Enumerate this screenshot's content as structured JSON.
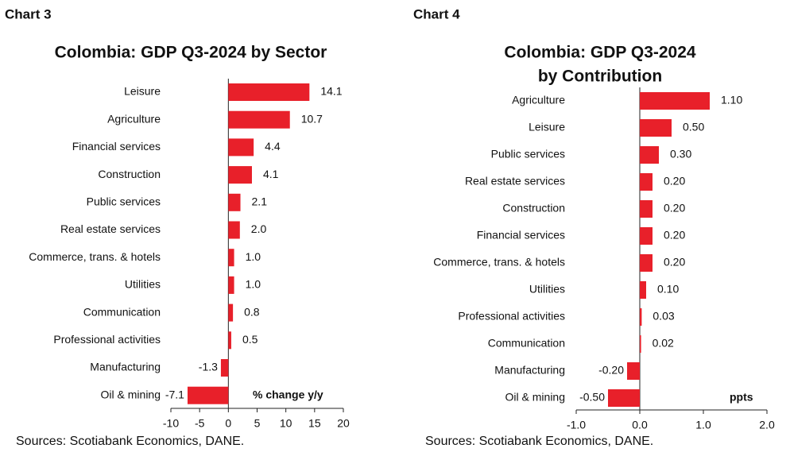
{
  "chart_data": [
    {
      "type": "hbar",
      "label": "Chart 3",
      "title": [
        "Colombia: GDP Q3-2024 by Sector"
      ],
      "categories": [
        "Leisure",
        "Agriculture",
        "Financial services",
        "Construction",
        "Public services",
        "Real estate services",
        "Commerce, trans. & hotels",
        "Utilities",
        "Communication",
        "Professional activities",
        "Manufacturing",
        "Oil & mining"
      ],
      "values": [
        14.1,
        10.7,
        4.4,
        4.1,
        2.1,
        2.0,
        1.0,
        1.0,
        0.8,
        0.5,
        -1.3,
        -7.1
      ],
      "value_labels": [
        "14.1",
        "10.7",
        "4.4",
        "4.1",
        "2.1",
        "2.0",
        "1.0",
        "1.0",
        "0.8",
        "0.5",
        "-1.3",
        "-7.1"
      ],
      "color": "#e8202a",
      "xlim": [
        -10,
        20
      ],
      "xticks": [
        -10,
        -5,
        0,
        5,
        10,
        15,
        20
      ],
      "unit_label": "% change y/y",
      "source": "Sources: Scotiabank Economics, DANE."
    },
    {
      "type": "hbar",
      "label": "Chart 4",
      "title": [
        "Colombia: GDP Q3-2024",
        "by Contribution"
      ],
      "categories": [
        "Agriculture",
        "Leisure",
        "Public services",
        "Real estate services",
        "Construction",
        "Financial services",
        "Commerce, trans. & hotels",
        "Utilities",
        "Professional activities",
        "Communication",
        "Manufacturing",
        "Oil & mining"
      ],
      "values": [
        1.1,
        0.5,
        0.3,
        0.2,
        0.2,
        0.2,
        0.2,
        0.1,
        0.03,
        0.02,
        -0.2,
        -0.5
      ],
      "value_labels": [
        "1.10",
        "0.50",
        "0.30",
        "0.20",
        "0.20",
        "0.20",
        "0.20",
        "0.10",
        "0.03",
        "0.02",
        "-0.20",
        "-0.50"
      ],
      "color": "#e8202a",
      "xlim": [
        -1,
        2
      ],
      "xticks": [
        {
          "value": -1,
          "label": "-1.0"
        },
        {
          "value": 0,
          "label": "0.0"
        },
        {
          "value": 1,
          "label": "1.0"
        },
        {
          "value": 2,
          "label": "2.0"
        }
      ],
      "unit_label": "ppts",
      "source": "Sources: Scotiabank Economics, DANE."
    }
  ]
}
